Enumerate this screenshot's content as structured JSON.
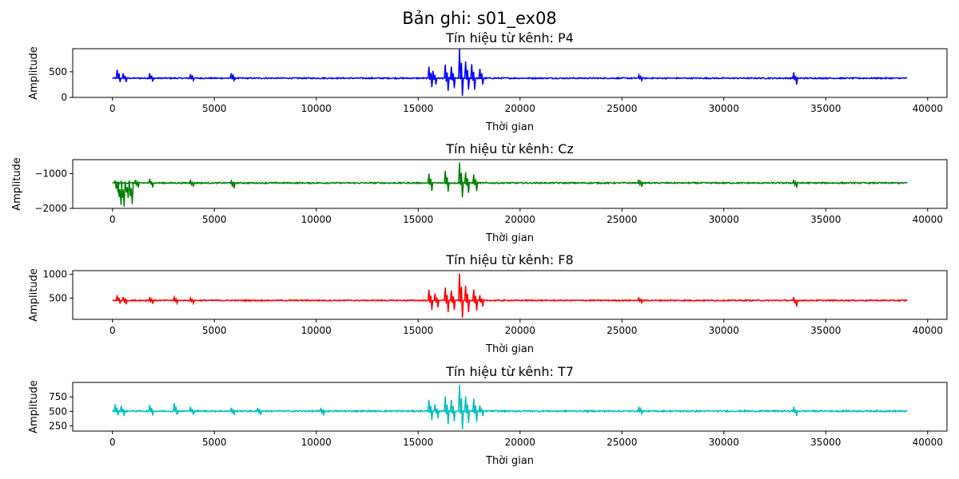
{
  "figure": {
    "suptitle": "Bản ghi: s01_ex08"
  },
  "chart_data": [
    {
      "type": "line",
      "title": "Tín hiệu từ kênh: P4",
      "xlabel": "Thời gian",
      "ylabel": "Amplitude",
      "color": "#0000ff",
      "xlim": [
        -1950,
        40950
      ],
      "ylim": [
        0,
        950
      ],
      "xticks": [
        0,
        5000,
        10000,
        15000,
        20000,
        25000,
        30000,
        35000,
        40000
      ],
      "yticks": [
        0,
        500
      ],
      "grid": false,
      "series": [
        {
          "x_range": [
            0,
            39000
          ],
          "baseline": 375,
          "noise": 12,
          "events": [
            {
              "x": 300,
              "min": 300,
              "max": 540
            },
            {
              "x": 600,
              "min": 300,
              "max": 470
            },
            {
              "x": 1900,
              "min": 310,
              "max": 470
            },
            {
              "x": 3900,
              "min": 330,
              "max": 450
            },
            {
              "x": 5900,
              "min": 330,
              "max": 470
            },
            {
              "x": 15600,
              "min": 200,
              "max": 600
            },
            {
              "x": 15800,
              "min": 250,
              "max": 520
            },
            {
              "x": 16400,
              "min": 130,
              "max": 640
            },
            {
              "x": 16700,
              "min": 180,
              "max": 600
            },
            {
              "x": 17100,
              "min": 30,
              "max": 950
            },
            {
              "x": 17400,
              "min": 150,
              "max": 700
            },
            {
              "x": 17700,
              "min": 150,
              "max": 650
            },
            {
              "x": 18100,
              "min": 250,
              "max": 560
            },
            {
              "x": 25900,
              "min": 330,
              "max": 440
            },
            {
              "x": 33500,
              "min": 250,
              "max": 490
            }
          ]
        }
      ]
    },
    {
      "type": "line",
      "title": "Tín hiệu từ kênh: Cz",
      "xlabel": "Thời gian",
      "ylabel": "Amplitude",
      "color": "#008000",
      "xlim": [
        -1950,
        40950
      ],
      "ylim": [
        -2000,
        -600
      ],
      "xticks": [
        0,
        5000,
        10000,
        15000,
        20000,
        25000,
        30000,
        35000,
        40000
      ],
      "yticks": [
        -2000,
        -1000
      ],
      "grid": false,
      "series": [
        {
          "x_range": [
            0,
            39000
          ],
          "baseline": -1270,
          "noise": 18,
          "events": [
            {
              "x": 200,
              "min": -1550,
              "max": -1200
            },
            {
              "x": 350,
              "min": -1900,
              "max": -1250
            },
            {
              "x": 500,
              "min": -1950,
              "max": -1230
            },
            {
              "x": 700,
              "min": -1700,
              "max": -1250
            },
            {
              "x": 900,
              "min": -1880,
              "max": -1220
            },
            {
              "x": 1200,
              "min": -1400,
              "max": -1180
            },
            {
              "x": 1900,
              "min": -1400,
              "max": -1150
            },
            {
              "x": 3900,
              "min": -1380,
              "max": -1200
            },
            {
              "x": 5900,
              "min": -1420,
              "max": -1210
            },
            {
              "x": 15600,
              "min": -1500,
              "max": -1000
            },
            {
              "x": 16400,
              "min": -1520,
              "max": -920
            },
            {
              "x": 17100,
              "min": -1680,
              "max": -680
            },
            {
              "x": 17400,
              "min": -1550,
              "max": -960
            },
            {
              "x": 17800,
              "min": -1500,
              "max": -1020
            },
            {
              "x": 25900,
              "min": -1380,
              "max": -1170
            },
            {
              "x": 33500,
              "min": -1400,
              "max": -1180
            }
          ]
        }
      ]
    },
    {
      "type": "line",
      "title": "Tín hiệu từ kênh: F8",
      "xlabel": "Thời gian",
      "ylabel": "Amplitude",
      "color": "#ff0000",
      "xlim": [
        -1950,
        40950
      ],
      "ylim": [
        50,
        1080
      ],
      "xticks": [
        0,
        5000,
        10000,
        15000,
        20000,
        25000,
        30000,
        35000,
        40000
      ],
      "yticks": [
        500,
        1000
      ],
      "grid": false,
      "series": [
        {
          "x_range": [
            0,
            39000
          ],
          "baseline": 450,
          "noise": 12,
          "events": [
            {
              "x": 300,
              "min": 380,
              "max": 560
            },
            {
              "x": 600,
              "min": 370,
              "max": 520
            },
            {
              "x": 1900,
              "min": 380,
              "max": 520
            },
            {
              "x": 3100,
              "min": 390,
              "max": 520
            },
            {
              "x": 3900,
              "min": 390,
              "max": 500
            },
            {
              "x": 15600,
              "min": 250,
              "max": 680
            },
            {
              "x": 15900,
              "min": 300,
              "max": 600
            },
            {
              "x": 16400,
              "min": 200,
              "max": 720
            },
            {
              "x": 16700,
              "min": 250,
              "max": 660
            },
            {
              "x": 17100,
              "min": 80,
              "max": 1020
            },
            {
              "x": 17400,
              "min": 200,
              "max": 760
            },
            {
              "x": 17800,
              "min": 230,
              "max": 680
            },
            {
              "x": 18100,
              "min": 320,
              "max": 560
            },
            {
              "x": 25900,
              "min": 400,
              "max": 500
            },
            {
              "x": 33500,
              "min": 320,
              "max": 520
            }
          ]
        }
      ]
    },
    {
      "type": "line",
      "title": "Tín hiệu từ kênh: T7",
      "xlabel": "Thời gian",
      "ylabel": "Amplitude",
      "color": "#00bfbf",
      "xlim": [
        -1950,
        40950
      ],
      "ylim": [
        160,
        1000
      ],
      "xticks": [
        0,
        5000,
        10000,
        15000,
        20000,
        25000,
        30000,
        35000,
        40000
      ],
      "yticks": [
        250,
        500,
        750
      ],
      "grid": false,
      "series": [
        {
          "x_range": [
            0,
            39000
          ],
          "baseline": 505,
          "noise": 12,
          "events": [
            {
              "x": 200,
              "min": 430,
              "max": 620
            },
            {
              "x": 500,
              "min": 420,
              "max": 600
            },
            {
              "x": 1900,
              "min": 430,
              "max": 610
            },
            {
              "x": 3100,
              "min": 440,
              "max": 640
            },
            {
              "x": 3900,
              "min": 440,
              "max": 580
            },
            {
              "x": 5900,
              "min": 440,
              "max": 560
            },
            {
              "x": 7200,
              "min": 440,
              "max": 560
            },
            {
              "x": 10300,
              "min": 430,
              "max": 560
            },
            {
              "x": 15600,
              "min": 350,
              "max": 700
            },
            {
              "x": 15900,
              "min": 380,
              "max": 620
            },
            {
              "x": 16400,
              "min": 280,
              "max": 760
            },
            {
              "x": 16700,
              "min": 330,
              "max": 700
            },
            {
              "x": 17100,
              "min": 190,
              "max": 960
            },
            {
              "x": 17400,
              "min": 300,
              "max": 760
            },
            {
              "x": 17800,
              "min": 320,
              "max": 720
            },
            {
              "x": 18100,
              "min": 420,
              "max": 600
            },
            {
              "x": 25900,
              "min": 460,
              "max": 580
            },
            {
              "x": 33500,
              "min": 420,
              "max": 580
            }
          ]
        }
      ]
    }
  ]
}
